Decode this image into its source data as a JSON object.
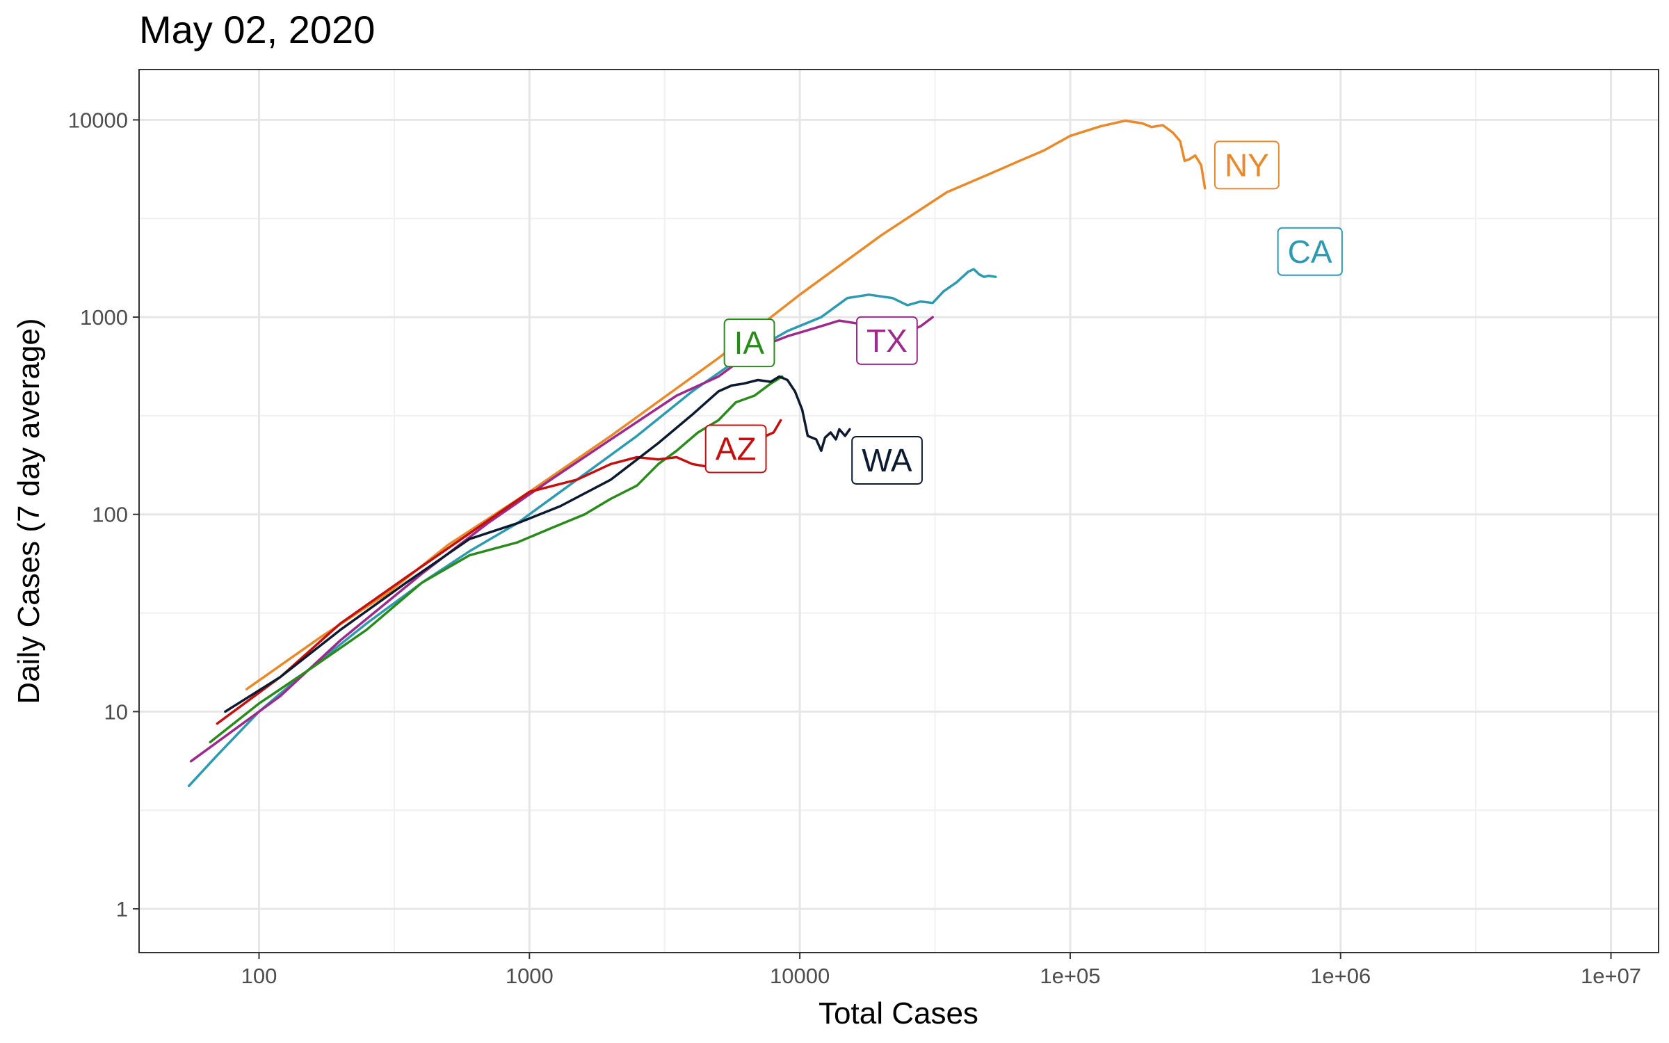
{
  "chart_data": {
    "type": "line",
    "title": "May 02, 2020",
    "xlabel": "Total Cases",
    "ylabel": "Daily Cases (7 day average)",
    "x_scale": "log",
    "y_scale": "log",
    "xlim": [
      36,
      15000000
    ],
    "ylim": [
      0.6,
      18000
    ],
    "grid": true,
    "x_ticks": [
      {
        "value": 100,
        "label": "100"
      },
      {
        "value": 1000,
        "label": "1000"
      },
      {
        "value": 10000,
        "label": "10000"
      },
      {
        "value": 100000,
        "label": "1e+05"
      },
      {
        "value": 1000000,
        "label": "1e+06"
      },
      {
        "value": 10000000,
        "label": "1e+07"
      }
    ],
    "y_ticks": [
      {
        "value": 1,
        "label": "1"
      },
      {
        "value": 10,
        "label": "10"
      },
      {
        "value": 100,
        "label": "100"
      },
      {
        "value": 1000,
        "label": "1000"
      },
      {
        "value": 10000,
        "label": "10000"
      }
    ],
    "series": [
      {
        "name": "NY",
        "color": "#e8892a",
        "label_at": [
          450000,
          5900
        ],
        "points": [
          [
            90,
            13
          ],
          [
            170,
            24
          ],
          [
            300,
            40
          ],
          [
            500,
            70
          ],
          [
            1000,
            130
          ],
          [
            2000,
            250
          ],
          [
            5000,
            620
          ],
          [
            10000,
            1300
          ],
          [
            20000,
            2600
          ],
          [
            35000,
            4300
          ],
          [
            50000,
            5300
          ],
          [
            65000,
            6200
          ],
          [
            80000,
            7000
          ],
          [
            100000,
            8300
          ],
          [
            130000,
            9300
          ],
          [
            160000,
            9900
          ],
          [
            185000,
            9600
          ],
          [
            200000,
            9200
          ],
          [
            220000,
            9400
          ],
          [
            240000,
            8600
          ],
          [
            255000,
            7800
          ],
          [
            265000,
            6200
          ],
          [
            275000,
            6300
          ],
          [
            290000,
            6600
          ],
          [
            305000,
            5900
          ],
          [
            315000,
            4500
          ]
        ]
      },
      {
        "name": "CA",
        "color": "#2e9ab0",
        "label_at": [
          770000,
          2150
        ],
        "points": [
          [
            55,
            4.2
          ],
          [
            70,
            6
          ],
          [
            100,
            10
          ],
          [
            150,
            16
          ],
          [
            250,
            28
          ],
          [
            400,
            45
          ],
          [
            600,
            65
          ],
          [
            900,
            90
          ],
          [
            1500,
            150
          ],
          [
            2500,
            250
          ],
          [
            4000,
            420
          ],
          [
            6000,
            620
          ],
          [
            9000,
            850
          ],
          [
            12000,
            1000
          ],
          [
            15000,
            1250
          ],
          [
            18000,
            1300
          ],
          [
            22000,
            1250
          ],
          [
            25000,
            1150
          ],
          [
            28000,
            1200
          ],
          [
            31000,
            1180
          ],
          [
            34000,
            1350
          ],
          [
            38000,
            1500
          ],
          [
            42000,
            1700
          ],
          [
            44000,
            1750
          ],
          [
            46000,
            1650
          ],
          [
            48000,
            1600
          ],
          [
            50000,
            1620
          ],
          [
            53000,
            1600
          ]
        ]
      },
      {
        "name": "TX",
        "color": "#9c2a8c",
        "label_at": [
          21000,
          760
        ],
        "points": [
          [
            56,
            5.6
          ],
          [
            80,
            8
          ],
          [
            120,
            12
          ],
          [
            200,
            23
          ],
          [
            400,
            50
          ],
          [
            700,
            90
          ],
          [
            1200,
            150
          ],
          [
            2000,
            240
          ],
          [
            3500,
            400
          ],
          [
            5000,
            500
          ],
          [
            7000,
            700
          ],
          [
            9000,
            800
          ],
          [
            12000,
            900
          ],
          [
            14000,
            960
          ],
          [
            17000,
            920
          ],
          [
            20000,
            800
          ],
          [
            24000,
            820
          ],
          [
            28000,
            900
          ],
          [
            31000,
            1000
          ]
        ]
      },
      {
        "name": "IA",
        "color": "#2a8a1c",
        "label_at": [
          6500,
          740
        ],
        "points": [
          [
            66,
            7
          ],
          [
            100,
            11
          ],
          [
            150,
            16
          ],
          [
            250,
            26
          ],
          [
            400,
            45
          ],
          [
            600,
            62
          ],
          [
            900,
            72
          ],
          [
            1200,
            85
          ],
          [
            1600,
            100
          ],
          [
            2000,
            120
          ],
          [
            2500,
            140
          ],
          [
            3000,
            180
          ],
          [
            3500,
            210
          ],
          [
            4200,
            260
          ],
          [
            5000,
            300
          ],
          [
            5800,
            370
          ],
          [
            6800,
            400
          ],
          [
            7800,
            460
          ],
          [
            8600,
            500
          ]
        ]
      },
      {
        "name": "AZ",
        "color": "#c40f0f",
        "label_at": [
          5800,
          215
        ],
        "points": [
          [
            70,
            8.7
          ],
          [
            120,
            15
          ],
          [
            200,
            28
          ],
          [
            350,
            48
          ],
          [
            600,
            80
          ],
          [
            1000,
            130
          ],
          [
            1500,
            150
          ],
          [
            2000,
            180
          ],
          [
            2500,
            195
          ],
          [
            3000,
            190
          ],
          [
            3500,
            195
          ],
          [
            4000,
            180
          ],
          [
            4500,
            175
          ],
          [
            5000,
            185
          ],
          [
            6000,
            210
          ],
          [
            7000,
            240
          ],
          [
            8000,
            260
          ],
          [
            8500,
            300
          ]
        ]
      },
      {
        "name": "WA",
        "color": "#0b1a2e",
        "label_at": [
          21000,
          188
        ],
        "points": [
          [
            75,
            10
          ],
          [
            120,
            15
          ],
          [
            200,
            26
          ],
          [
            350,
            45
          ],
          [
            600,
            75
          ],
          [
            900,
            90
          ],
          [
            1300,
            110
          ],
          [
            2000,
            150
          ],
          [
            3000,
            230
          ],
          [
            4000,
            320
          ],
          [
            5000,
            420
          ],
          [
            5600,
            450
          ],
          [
            6200,
            460
          ],
          [
            7000,
            480
          ],
          [
            7800,
            470
          ],
          [
            8400,
            500
          ],
          [
            9000,
            480
          ],
          [
            9600,
            420
          ],
          [
            10200,
            340
          ],
          [
            10700,
            250
          ],
          [
            11500,
            240
          ],
          [
            12000,
            210
          ],
          [
            12400,
            245
          ],
          [
            13000,
            260
          ],
          [
            13600,
            240
          ],
          [
            14000,
            270
          ],
          [
            14700,
            250
          ],
          [
            15300,
            270
          ]
        ]
      }
    ]
  }
}
